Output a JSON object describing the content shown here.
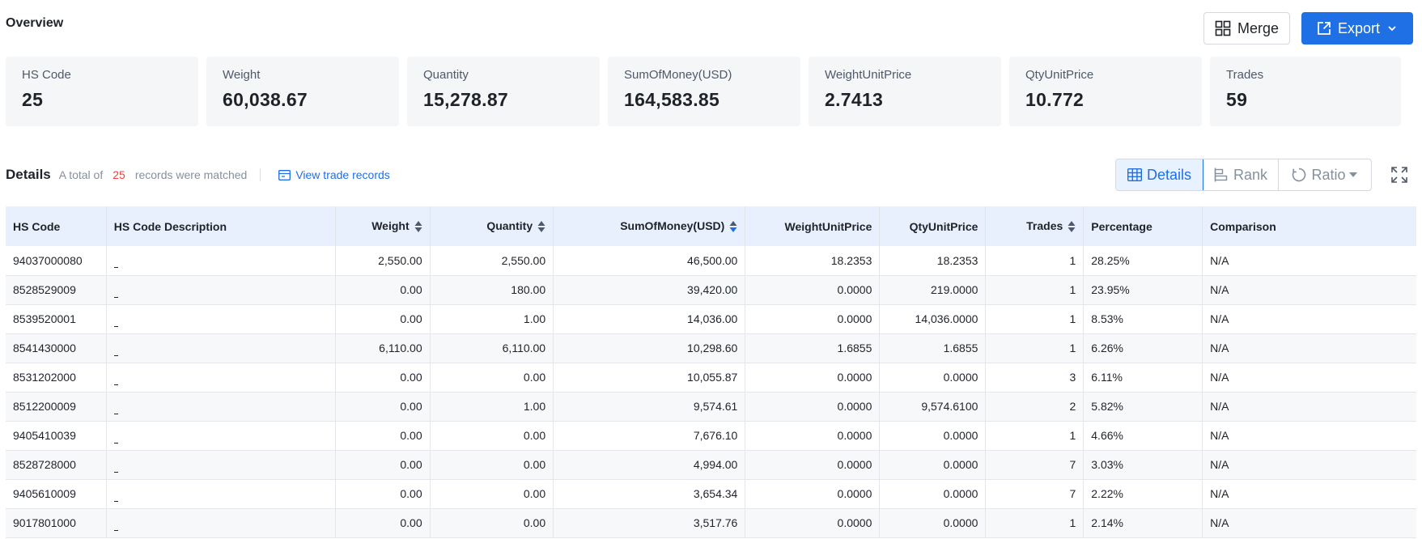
{
  "overview": {
    "title": "Overview"
  },
  "actions": {
    "merge_label": "Merge",
    "export_label": "Export"
  },
  "stats": [
    {
      "label": "HS Code",
      "value": "25"
    },
    {
      "label": "Weight",
      "value": "60,038.67"
    },
    {
      "label": "Quantity",
      "value": "15,278.87"
    },
    {
      "label": "SumOfMoney(USD)",
      "value": "164,583.85"
    },
    {
      "label": "WeightUnitPrice",
      "value": "2.7413"
    },
    {
      "label": "QtyUnitPrice",
      "value": "10.772"
    },
    {
      "label": "Trades",
      "value": "59"
    }
  ],
  "details": {
    "title": "Details",
    "total_prefix": "A total of",
    "total_count": "25",
    "total_suffix": "records were matched",
    "view_link": "View trade records"
  },
  "view_toggle": {
    "details": "Details",
    "rank": "Rank",
    "ratio": "Ratio"
  },
  "colors": {
    "accent": "#1f6fe5",
    "count": "#f53f3f",
    "header_bg": "#e8f0fe",
    "card_bg": "#f5f6f8"
  },
  "table": {
    "headers": {
      "hs_code": "HS Code",
      "description": "HS Code Description",
      "weight": "Weight",
      "quantity": "Quantity",
      "sum": "SumOfMoney(USD)",
      "weight_unit_price": "WeightUnitPrice",
      "qty_unit_price": "QtyUnitPrice",
      "trades": "Trades",
      "percentage": "Percentage",
      "comparison": "Comparison"
    },
    "rows": [
      {
        "hs_code": "94037000080",
        "weight": "2,550.00",
        "quantity": "2,550.00",
        "sum": "46,500.00",
        "weight_unit_price": "18.2353",
        "qty_unit_price": "18.2353",
        "trades": "1",
        "percentage": "28.25%",
        "comparison": "N/A"
      },
      {
        "hs_code": "8528529009",
        "weight": "0.00",
        "quantity": "180.00",
        "sum": "39,420.00",
        "weight_unit_price": "0.0000",
        "qty_unit_price": "219.0000",
        "trades": "1",
        "percentage": "23.95%",
        "comparison": "N/A"
      },
      {
        "hs_code": "8539520001",
        "weight": "0.00",
        "quantity": "1.00",
        "sum": "14,036.00",
        "weight_unit_price": "0.0000",
        "qty_unit_price": "14,036.0000",
        "trades": "1",
        "percentage": "8.53%",
        "comparison": "N/A"
      },
      {
        "hs_code": "8541430000",
        "weight": "6,110.00",
        "quantity": "6,110.00",
        "sum": "10,298.60",
        "weight_unit_price": "1.6855",
        "qty_unit_price": "1.6855",
        "trades": "1",
        "percentage": "6.26%",
        "comparison": "N/A"
      },
      {
        "hs_code": "8531202000",
        "weight": "0.00",
        "quantity": "0.00",
        "sum": "10,055.87",
        "weight_unit_price": "0.0000",
        "qty_unit_price": "0.0000",
        "trades": "3",
        "percentage": "6.11%",
        "comparison": "N/A"
      },
      {
        "hs_code": "8512200009",
        "weight": "0.00",
        "quantity": "1.00",
        "sum": "9,574.61",
        "weight_unit_price": "0.0000",
        "qty_unit_price": "9,574.6100",
        "trades": "2",
        "percentage": "5.82%",
        "comparison": "N/A"
      },
      {
        "hs_code": "9405410039",
        "weight": "0.00",
        "quantity": "0.00",
        "sum": "7,676.10",
        "weight_unit_price": "0.0000",
        "qty_unit_price": "0.0000",
        "trades": "1",
        "percentage": "4.66%",
        "comparison": "N/A"
      },
      {
        "hs_code": "8528728000",
        "weight": "0.00",
        "quantity": "0.00",
        "sum": "4,994.00",
        "weight_unit_price": "0.0000",
        "qty_unit_price": "0.0000",
        "trades": "7",
        "percentage": "3.03%",
        "comparison": "N/A"
      },
      {
        "hs_code": "9405610009",
        "weight": "0.00",
        "quantity": "0.00",
        "sum": "3,654.34",
        "weight_unit_price": "0.0000",
        "qty_unit_price": "0.0000",
        "trades": "7",
        "percentage": "2.22%",
        "comparison": "N/A"
      },
      {
        "hs_code": "9017801000",
        "weight": "0.00",
        "quantity": "0.00",
        "sum": "3,517.76",
        "weight_unit_price": "0.0000",
        "qty_unit_price": "0.0000",
        "trades": "1",
        "percentage": "2.14%",
        "comparison": "N/A"
      }
    ]
  }
}
